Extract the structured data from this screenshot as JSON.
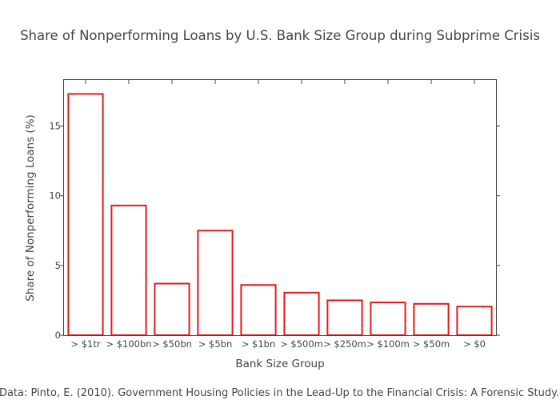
{
  "chart_data": {
    "type": "bar",
    "title": "Share of Nonperforming Loans by U.S. Bank Size Group during Subprime Crisis",
    "xlabel": "Bank Size Group",
    "ylabel": "Share of Nonperforming Loans (%)",
    "categories": [
      "> $1tr",
      "> $100bn",
      "> $50bn",
      "> $5bn",
      "> $1bn",
      "> $500m",
      "> $250m",
      "> $100m",
      "> $50m",
      "> $0"
    ],
    "values": [
      17.3,
      9.3,
      3.7,
      7.5,
      3.6,
      3.05,
      2.5,
      2.35,
      2.25,
      2.05
    ],
    "ylim": [
      0,
      18.3
    ],
    "yticks": [
      0,
      5,
      10,
      15
    ],
    "grid": false,
    "legend": "none",
    "bar_fill": "#ffffff",
    "bar_stroke": "#e3191c",
    "source": "Data: Pinto, E. (2010). Government Housing Policies in the Lead-Up to the Financial Crisis: A Forensic Study."
  }
}
